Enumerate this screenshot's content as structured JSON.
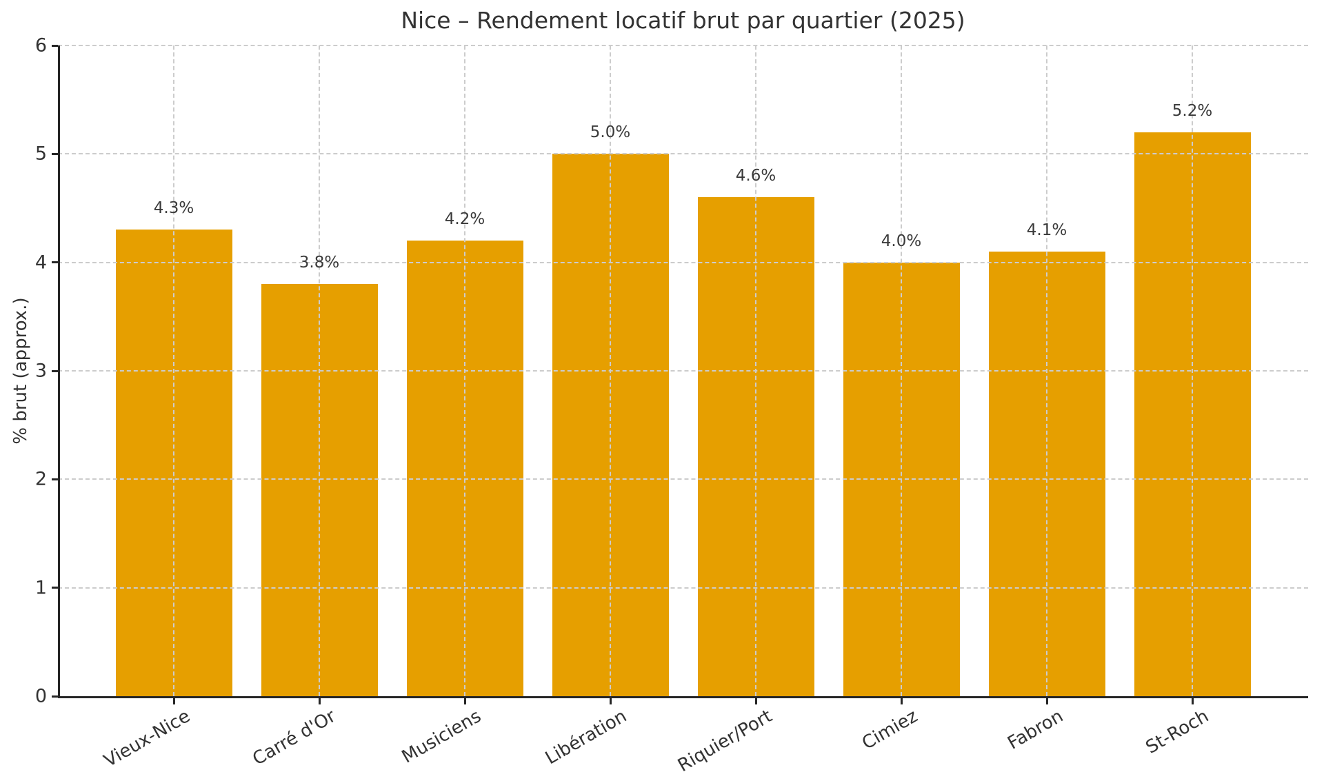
{
  "chart_data": {
    "type": "bar",
    "title": "Nice – Rendement locatif brut par quartier (2025)",
    "xlabel": "",
    "ylabel": "% brut (approx.)",
    "categories": [
      "Vieux-Nice",
      "Carré d'Or",
      "Musiciens",
      "Libération",
      "Riquier/Port",
      "Cimiez",
      "Fabron",
      "St-Roch"
    ],
    "values": [
      4.3,
      3.8,
      4.2,
      5.0,
      4.6,
      4.0,
      4.1,
      5.2
    ],
    "value_labels": [
      "4.3%",
      "3.8%",
      "4.2%",
      "5.0%",
      "4.6%",
      "4.0%",
      "4.1%",
      "5.2%"
    ],
    "ylim": [
      0,
      6
    ],
    "yticks": [
      "0",
      "1",
      "2",
      "3",
      "4",
      "5",
      "6"
    ],
    "grid": "dashed",
    "legend": "none",
    "colors": {
      "bar": "#E69F00",
      "text": "#333333",
      "grid": "#cccccc",
      "spine": "#262626",
      "background": "#ffffff"
    }
  }
}
